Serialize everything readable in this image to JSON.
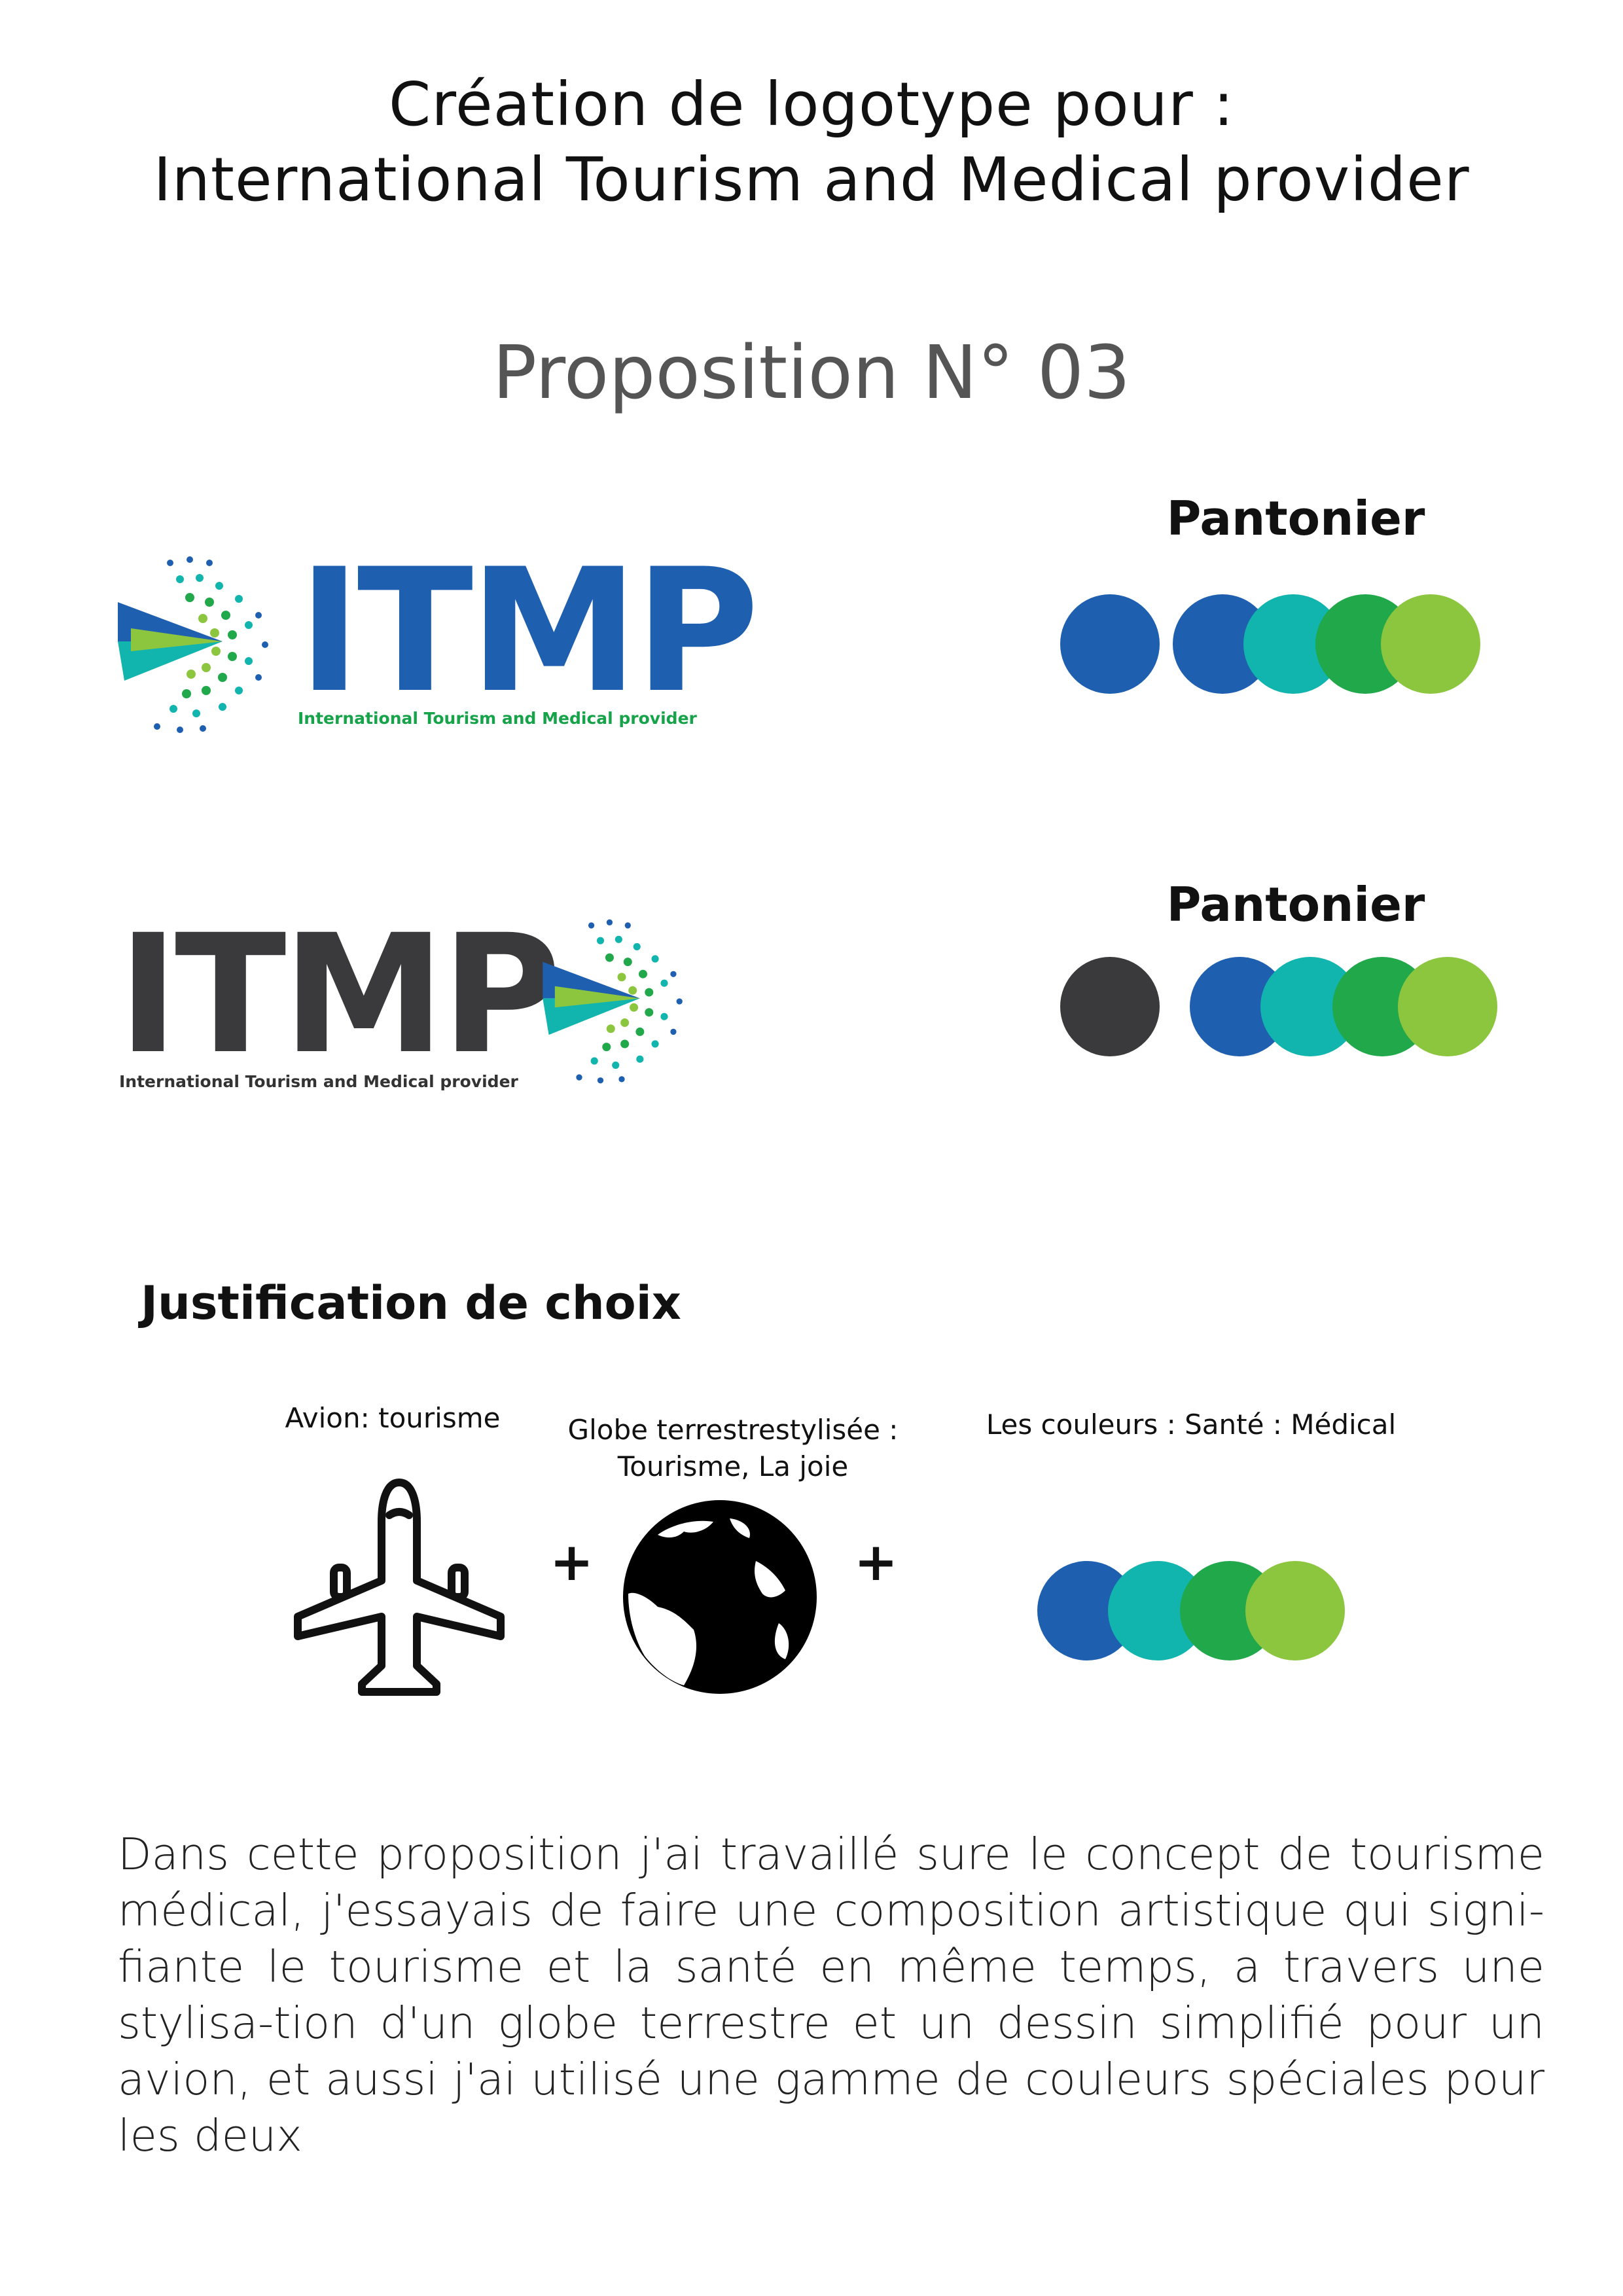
{
  "header": {
    "title_line1": "Création de logotype pour :",
    "title_line2": "International Tourism and Medical provider",
    "subtitle": "Proposition N° 03"
  },
  "logo1": {
    "wordmark": "ITMP",
    "tagline": "International Tourism and Medical provider",
    "wordmark_color": "#1E5FB0",
    "tagline_color": "#16A34A"
  },
  "palette1": {
    "label": "Pantonier",
    "colors": [
      "#1E5FB0",
      "#1E5FB0",
      "#12B5AE",
      "#20A84A",
      "#8CC63F"
    ]
  },
  "logo2": {
    "wordmark": "ITMP",
    "tagline": "International Tourism and Medical provider",
    "wordmark_color": "#3A3A3C"
  },
  "palette2": {
    "label": "Pantonier",
    "colors": [
      "#3A3A3C",
      "#1E5FB0",
      "#12B5AE",
      "#20A84A",
      "#8CC63F"
    ]
  },
  "justification": {
    "heading": "Justification de choix",
    "plane_caption": "Avion: tourisme",
    "globe_caption_line1": "Globe terrestrestylisée :",
    "globe_caption_line2": "Tourisme, La joie",
    "colors_caption": "Les couleurs : Santé : Médical",
    "plus_symbol": "+",
    "colors": [
      "#1E5FB0",
      "#12B5AE",
      "#20A84A",
      "#8CC63F"
    ]
  },
  "paragraph": {
    "text": "Dans cette proposition j'ai travaillé sure le concept de tourisme médical, j'essayais de faire une composition artistique qui signi-fiante le tourisme et la santé en même temps, a travers une stylisa-tion d'un globe terrestre et un dessin simplifié pour un avion, et aussi j'ai utilisé une gamme de couleurs spéciales pour les deux"
  }
}
